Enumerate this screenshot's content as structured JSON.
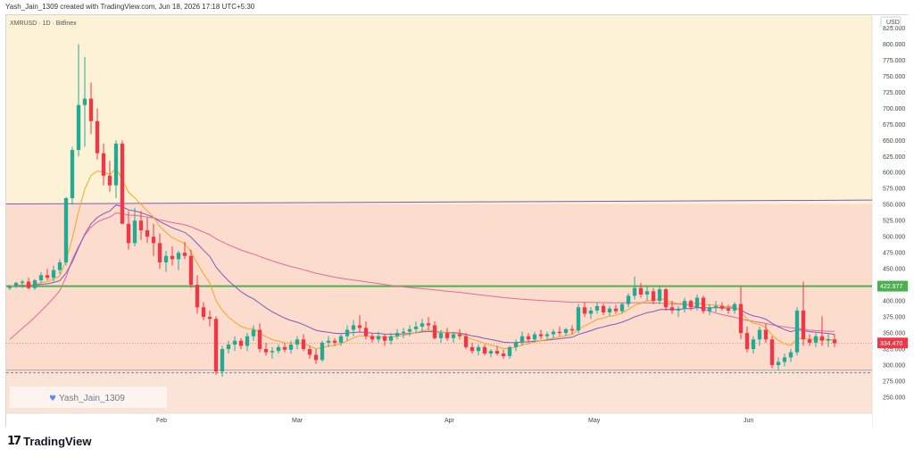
{
  "header": {
    "caption": "Yash_Jain_1309 created with TradingView.com, Jun 18, 2026 17:18 UTC+5:30"
  },
  "footer": {
    "brand": "TradingView"
  },
  "chart_data": {
    "type": "candlestick",
    "title": "XMRUSD · 1D · Bitfinex",
    "currency": "USD",
    "x_labels": [
      "Feb",
      "Mar",
      "Apr",
      "May",
      "Jun"
    ],
    "y_ticks": [
      "825.000",
      "800.000",
      "775.000",
      "750.000",
      "725.000",
      "700.000",
      "675.000",
      "650.000",
      "625.000",
      "600.000",
      "575.000",
      "550.000",
      "525.000",
      "500.000",
      "475.000",
      "450.000",
      "425.000",
      "400.000",
      "375.000",
      "350.000",
      "325.000",
      "300.000",
      "275.000",
      "250.000"
    ],
    "ylim": [
      225,
      845
    ],
    "horizontal_level": {
      "value": 422.977,
      "label": "422.977",
      "color": "#4caf50"
    },
    "last_price": {
      "value": 334.47,
      "label": "334.470",
      "color": "#f23645"
    },
    "support_line": {
      "value": 288
    },
    "trend_line": {
      "start": 551,
      "end": 557,
      "color": "#7e57c2"
    },
    "zones": [
      {
        "from": 422.977,
        "to": 845,
        "color": "#fdf2d6"
      },
      {
        "from": 292,
        "to": 551,
        "color": "#fcdccd"
      },
      {
        "from": 225,
        "to": 292,
        "color": "#fbe3d8"
      }
    ],
    "watermark": "Yash_Jain_1309",
    "candles": [
      [
        420,
        425,
        417,
        423
      ],
      [
        423,
        430,
        420,
        428
      ],
      [
        428,
        433,
        420,
        430
      ],
      [
        430,
        436,
        418,
        420
      ],
      [
        420,
        434,
        417,
        432
      ],
      [
        432,
        445,
        428,
        440
      ],
      [
        440,
        450,
        432,
        436
      ],
      [
        436,
        455,
        430,
        448
      ],
      [
        448,
        465,
        442,
        460
      ],
      [
        460,
        562,
        455,
        560
      ],
      [
        560,
        640,
        550,
        635
      ],
      [
        635,
        800,
        625,
        705
      ],
      [
        705,
        780,
        640,
        715
      ],
      [
        715,
        740,
        660,
        680
      ],
      [
        680,
        700,
        620,
        630
      ],
      [
        630,
        645,
        580,
        595
      ],
      [
        595,
        618,
        570,
        580
      ],
      [
        580,
        650,
        560,
        645
      ],
      [
        645,
        650,
        520,
        520
      ],
      [
        520,
        540,
        480,
        490
      ],
      [
        490,
        545,
        485,
        525
      ],
      [
        525,
        540,
        495,
        510
      ],
      [
        510,
        530,
        490,
        500
      ],
      [
        500,
        520,
        470,
        490
      ],
      [
        490,
        505,
        450,
        460
      ],
      [
        460,
        478,
        445,
        470
      ],
      [
        470,
        485,
        455,
        465
      ],
      [
        465,
        478,
        448,
        475
      ],
      [
        475,
        492,
        465,
        470
      ],
      [
        470,
        480,
        420,
        425
      ],
      [
        425,
        440,
        380,
        390
      ],
      [
        390,
        398,
        370,
        375
      ],
      [
        375,
        385,
        360,
        372
      ],
      [
        372,
        376,
        285,
        290
      ],
      [
        290,
        330,
        282,
        325
      ],
      [
        325,
        338,
        318,
        332
      ],
      [
        332,
        345,
        322,
        338
      ],
      [
        338,
        342,
        325,
        330
      ],
      [
        330,
        350,
        322,
        345
      ],
      [
        345,
        362,
        338,
        355
      ],
      [
        355,
        365,
        320,
        325
      ],
      [
        325,
        335,
        315,
        320
      ],
      [
        320,
        328,
        310,
        322
      ],
      [
        322,
        332,
        318,
        328
      ],
      [
        328,
        335,
        320,
        324
      ],
      [
        324,
        338,
        318,
        332
      ],
      [
        332,
        345,
        325,
        340
      ],
      [
        340,
        348,
        322,
        325
      ],
      [
        325,
        330,
        310,
        316
      ],
      [
        316,
        325,
        302,
        308
      ],
      [
        308,
        338,
        305,
        335
      ],
      [
        335,
        345,
        328,
        338
      ],
      [
        338,
        342,
        330,
        335
      ],
      [
        335,
        348,
        330,
        345
      ],
      [
        345,
        362,
        338,
        355
      ],
      [
        355,
        370,
        345,
        362
      ],
      [
        362,
        378,
        352,
        358
      ],
      [
        358,
        368,
        340,
        345
      ],
      [
        345,
        350,
        335,
        340
      ],
      [
        340,
        352,
        335,
        345
      ],
      [
        345,
        348,
        330,
        338
      ],
      [
        338,
        350,
        332,
        345
      ],
      [
        345,
        356,
        340,
        350
      ],
      [
        350,
        358,
        342,
        352
      ],
      [
        352,
        362,
        345,
        356
      ],
      [
        356,
        368,
        350,
        360
      ],
      [
        360,
        372,
        352,
        365
      ],
      [
        365,
        375,
        355,
        362
      ],
      [
        362,
        368,
        340,
        342
      ],
      [
        342,
        355,
        335,
        350
      ],
      [
        350,
        358,
        338,
        342
      ],
      [
        342,
        352,
        335,
        348
      ],
      [
        348,
        356,
        340,
        345
      ],
      [
        345,
        350,
        325,
        328
      ],
      [
        328,
        335,
        318,
        322
      ],
      [
        322,
        332,
        315,
        328
      ],
      [
        328,
        332,
        315,
        318
      ],
      [
        318,
        325,
        312,
        322
      ],
      [
        322,
        330,
        315,
        318
      ],
      [
        318,
        324,
        310,
        314
      ],
      [
        314,
        330,
        310,
        328
      ],
      [
        328,
        340,
        322,
        336
      ],
      [
        336,
        352,
        330,
        345
      ],
      [
        345,
        350,
        335,
        340
      ],
      [
        340,
        352,
        335,
        348
      ],
      [
        348,
        355,
        340,
        345
      ],
      [
        345,
        352,
        340,
        348
      ],
      [
        348,
        356,
        342,
        352
      ],
      [
        352,
        360,
        345,
        350
      ],
      [
        350,
        358,
        345,
        356
      ],
      [
        356,
        362,
        348,
        354
      ],
      [
        354,
        395,
        350,
        390
      ],
      [
        390,
        398,
        375,
        380
      ],
      [
        380,
        390,
        372,
        385
      ],
      [
        385,
        398,
        380,
        392
      ],
      [
        392,
        396,
        378,
        382
      ],
      [
        382,
        392,
        376,
        388
      ],
      [
        388,
        394,
        380,
        384
      ],
      [
        384,
        398,
        380,
        395
      ],
      [
        395,
        412,
        390,
        408
      ],
      [
        408,
        438,
        402,
        420
      ],
      [
        420,
        428,
        405,
        410
      ],
      [
        410,
        422,
        400,
        415
      ],
      [
        415,
        420,
        395,
        400
      ],
      [
        400,
        422,
        395,
        418
      ],
      [
        418,
        420,
        385,
        390
      ],
      [
        390,
        400,
        380,
        385
      ],
      [
        385,
        392,
        375,
        388
      ],
      [
        388,
        405,
        382,
        400
      ],
      [
        400,
        402,
        385,
        390
      ],
      [
        390,
        410,
        385,
        405
      ],
      [
        405,
        408,
        380,
        384
      ],
      [
        384,
        395,
        378,
        390
      ],
      [
        390,
        400,
        382,
        392
      ],
      [
        392,
        398,
        385,
        388
      ],
      [
        388,
        394,
        380,
        385
      ],
      [
        385,
        398,
        380,
        395
      ],
      [
        395,
        422,
        340,
        350
      ],
      [
        350,
        360,
        320,
        325
      ],
      [
        325,
        345,
        318,
        340
      ],
      [
        340,
        360,
        330,
        355
      ],
      [
        355,
        365,
        335,
        340
      ],
      [
        340,
        345,
        295,
        300
      ],
      [
        300,
        312,
        292,
        305
      ],
      [
        305,
        318,
        298,
        312
      ],
      [
        312,
        325,
        305,
        320
      ],
      [
        320,
        390,
        315,
        385
      ],
      [
        385,
        430,
        330,
        340
      ],
      [
        340,
        348,
        330,
        335
      ],
      [
        335,
        350,
        328,
        345
      ],
      [
        345,
        376,
        330,
        338
      ],
      [
        338,
        348,
        328,
        340
      ],
      [
        340,
        348,
        328,
        334
      ]
    ]
  }
}
